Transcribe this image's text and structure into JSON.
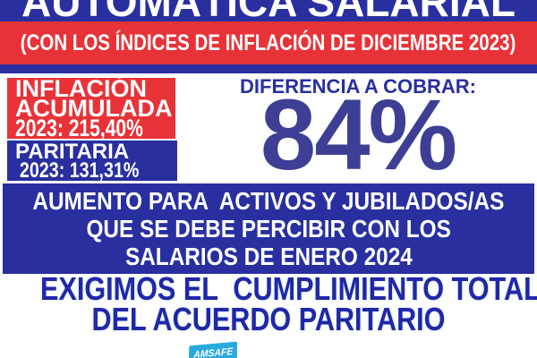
{
  "poster": {
    "title": "AUTOMÁTICA SALARIAL",
    "subtitle": "(CON LOS ÍNDICES DE INFLACIÓN DE DICIEMBRE 2023)",
    "inflacion_box": {
      "line1": "INFLACIÓN",
      "line2": "ACUMULADA",
      "line3": "2023: 215,40%"
    },
    "paritaria_box": {
      "line1": "PARITARIA",
      "line2": "2023: 131,31%"
    },
    "diferencia": {
      "label": "DIFERENCIA A COBRAR:",
      "value": "84%"
    },
    "aumento": {
      "line1": "AUMENTO PARA  ACTIVOS Y JUBILADOS/AS",
      "line2": "QUE SE DEBE PERCIBIR CON LOS",
      "line3": "SALARIOS DE ENERO 2024"
    },
    "exigimos": {
      "line1": "EXIGIMOS EL  CUMPLIMIENTO TOTAL",
      "line2": "DEL ACUERDO PARITARIO"
    },
    "logo": {
      "text": "AMSAFE"
    },
    "colors": {
      "dark_blue": "#292f9f",
      "red": "#e73338",
      "percent_blue": "#3d3f94",
      "slogan_blue": "#2127a6",
      "logo_cyan": "#29a9e0",
      "text_white": "#ffffff"
    }
  }
}
